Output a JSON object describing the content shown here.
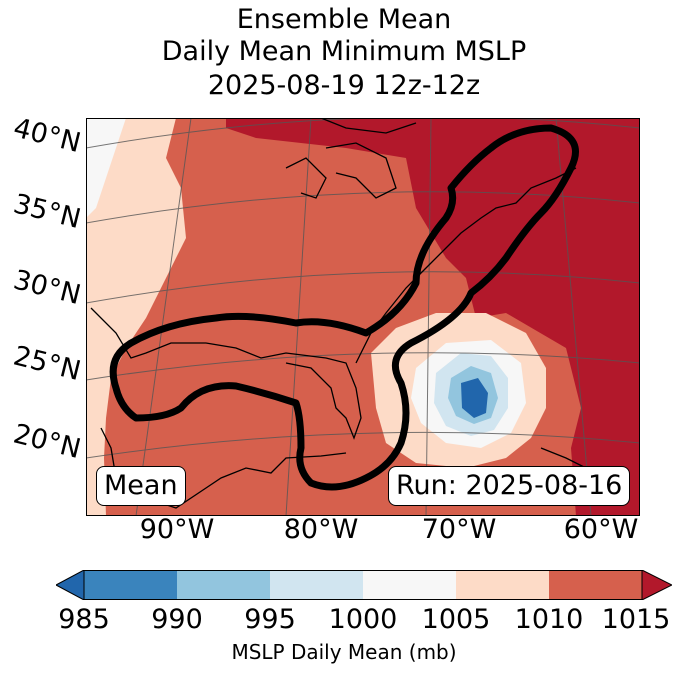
{
  "title": {
    "line1": "Ensemble Mean",
    "line2": "Daily Mean Minimum MSLP",
    "line3": "2025-08-19 12z-12z"
  },
  "lat_labels": [
    "40°N",
    "35°N",
    "30°N",
    "25°N",
    "20°N"
  ],
  "lon_labels": [
    "90°W",
    "80°W",
    "70°W",
    "60°W"
  ],
  "mean_label": "Mean",
  "run_label": "Run: 2025-08-16",
  "colorbar": {
    "label": "MSLP Daily Mean (mb)",
    "ticks": [
      "985",
      "990",
      "995",
      "1000",
      "1005",
      "1010",
      "1015"
    ],
    "colors": [
      "#3a84bd",
      "#2166ac",
      "#92c5de",
      "#d1e5f0",
      "#f7f7f7",
      "#fddbc7",
      "#d6604d",
      "#b2182b"
    ]
  }
}
